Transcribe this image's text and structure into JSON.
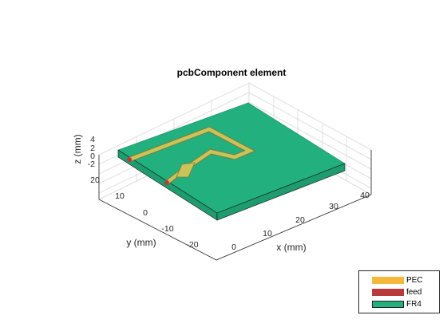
{
  "chart_data": {
    "type": "3d-layout",
    "title": "pcbComponent element",
    "xlabel": "x (mm)",
    "ylabel": "y (mm)",
    "zlabel": "z (mm)",
    "x_ticks": [
      "0",
      "10",
      "20",
      "30",
      "40"
    ],
    "y_ticks": [
      "20",
      "10",
      "0",
      "-10",
      "-20"
    ],
    "z_ticks": [
      "4",
      "2",
      "0",
      "-2"
    ],
    "legend": [
      {
        "label": "PEC",
        "color": "#f5b83d"
      },
      {
        "label": "feed",
        "color": "#b83a3a"
      },
      {
        "label": "FR4",
        "color": "#21b07e"
      }
    ]
  }
}
